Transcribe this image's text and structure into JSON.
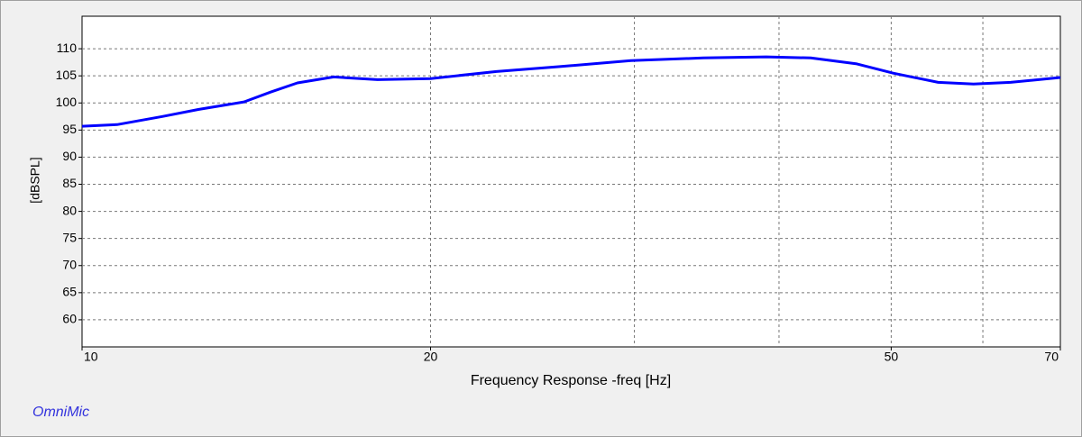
{
  "chart_data": {
    "type": "line",
    "y_label": "[dBSPL]",
    "x_label": "Frequency Response -freq [Hz]",
    "brand": "OmniMic",
    "x_scale": "log",
    "xlim": [
      10,
      70
    ],
    "ylim": [
      55,
      116
    ],
    "xticks": [
      10,
      20,
      50,
      70
    ],
    "x_gridlines": [
      20,
      30,
      40,
      50,
      60
    ],
    "yticks": [
      60,
      65,
      70,
      75,
      80,
      85,
      90,
      95,
      100,
      105,
      110
    ],
    "grid": true,
    "series": [
      {
        "color": "#0000ff",
        "x": [
          10,
          10.72,
          11.73,
          12.6,
          13.8,
          14.55,
          15.35,
          16.5,
          18.0,
          20,
          22.8,
          25.8,
          29.8,
          34.4,
          39.0,
          42.6,
          46.7,
          50.2,
          54.9,
          58.9,
          63.4,
          70
        ],
        "values": [
          95.7,
          96.0,
          97.5,
          98.8,
          100.2,
          102.0,
          103.7,
          104.8,
          104.3,
          104.5,
          105.8,
          106.7,
          107.8,
          108.3,
          108.5,
          108.3,
          107.2,
          105.5,
          103.8,
          103.5,
          103.8,
          104.7
        ]
      }
    ]
  }
}
